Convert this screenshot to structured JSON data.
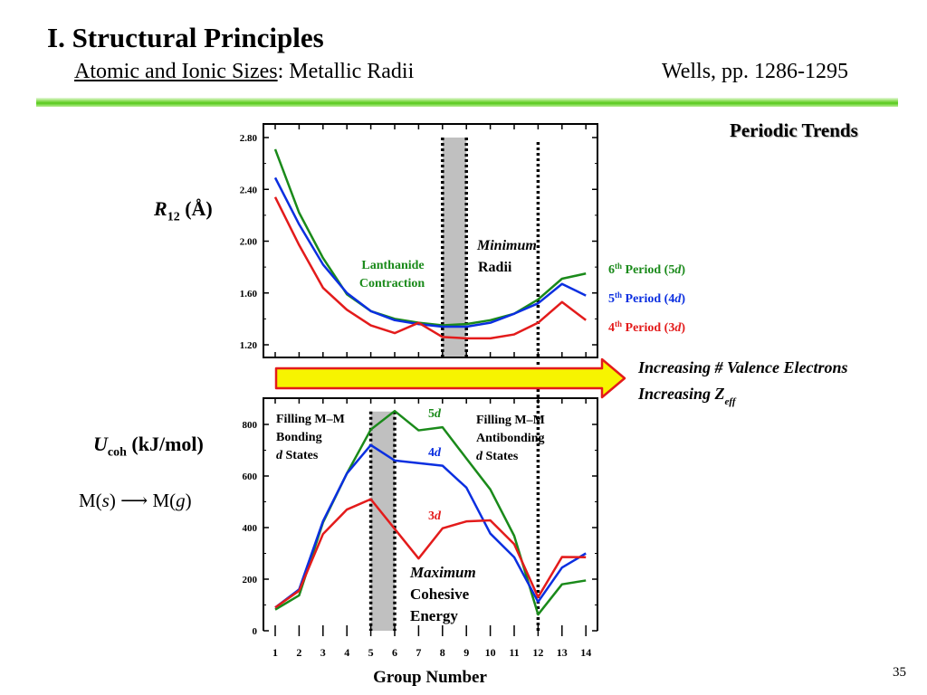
{
  "slide": {
    "title": "I. Structural Principles",
    "subtitle_underlined": "Atomic and Ionic Sizes",
    "subtitle_rest": ": Metallic Radii",
    "reference": "Wells, pp. 1286-1295",
    "trend_heading": "Periodic Trends",
    "page_number": "35",
    "r_symbol": "R",
    "r_subscript": "12",
    "r_unit": " (Å)",
    "u_symbol": "U",
    "u_subscript": "coh",
    "u_unit": " (kJ/mol)",
    "reaction_lhs": "M(",
    "reaction_lhs_state": "s",
    "reaction_arrow": ") ⟶ M(",
    "reaction_rhs_state": "g",
    "reaction_close": ")"
  },
  "colors": {
    "period6": "#1a8a1a",
    "period5": "#0b2fe0",
    "period4": "#e31b1b",
    "shade": "#c0c0c0",
    "arrow_fill": "#f7f400",
    "arrow_stroke": "#e31b1b"
  },
  "arrow_text": {
    "line1": "Increasing # Valence Electrons",
    "line2_main": "Increasing Z",
    "line2_sub": "eff"
  },
  "chart_data": [
    {
      "type": "line",
      "ylabel": "R12 (Å)",
      "ylim": [
        1.2,
        2.8
      ],
      "yticks": [
        "2.80",
        "2.40",
        "2.00",
        "1.60",
        "1.20"
      ],
      "x": [
        1,
        2,
        3,
        4,
        5,
        6,
        7,
        8,
        9,
        10,
        11,
        12,
        13,
        14
      ],
      "series": [
        {
          "name": "6th Period (5d)",
          "label": [
            "6",
            "th",
            " Period (5",
            "d",
            ")"
          ],
          "color_key": "period6",
          "values": [
            2.71,
            2.22,
            1.87,
            1.59,
            1.46,
            1.4,
            1.37,
            1.35,
            1.36,
            1.39,
            1.44,
            1.55,
            1.71,
            1.75
          ]
        },
        {
          "name": "5th Period (4d)",
          "label": [
            "5",
            "th",
            " Period (4",
            "d",
            ")"
          ],
          "color_key": "period5",
          "values": [
            2.49,
            2.13,
            1.82,
            1.6,
            1.46,
            1.39,
            1.36,
            1.34,
            1.34,
            1.37,
            1.44,
            1.52,
            1.67,
            1.58
          ]
        },
        {
          "name": "4th Period (3d)",
          "label": [
            "4",
            "th",
            " Period (3",
            "d",
            ")"
          ],
          "color_key": "period4",
          "values": [
            2.34,
            1.97,
            1.64,
            1.47,
            1.35,
            1.29,
            1.37,
            1.26,
            1.25,
            1.25,
            1.28,
            1.37,
            1.53,
            1.39
          ]
        }
      ],
      "annotations": {
        "lanthanide_line1": "Lanthanide",
        "lanthanide_line2": "Contraction",
        "minimum_line1": "Minimum",
        "minimum_line2": "Radii"
      },
      "shaded_band": {
        "x_from": 8,
        "x_to": 9
      },
      "dotted_lines_x": [
        8,
        9,
        12
      ]
    },
    {
      "type": "line",
      "xlabel": "Group Number",
      "ylabel": "Ucoh (kJ/mol)",
      "ylim": [
        0,
        850
      ],
      "yticks": [
        "800",
        "600",
        "400",
        "200",
        "0"
      ],
      "x": [
        1,
        2,
        3,
        4,
        5,
        6,
        7,
        8,
        9,
        10,
        11,
        12,
        13,
        14
      ],
      "xticks": [
        "1",
        "2",
        "3",
        "4",
        "5",
        "6",
        "7",
        "8",
        "9",
        "10",
        "11",
        "12",
        "13",
        "14"
      ],
      "series": [
        {
          "name": "5d",
          "label": [
            "5",
            "d"
          ],
          "color_key": "period6",
          "values": [
            82,
            137,
            420,
            610,
            780,
            852,
            777,
            789,
            668,
            548,
            368,
            63,
            180,
            195
          ]
        },
        {
          "name": "4d",
          "label": [
            "4",
            "d"
          ],
          "color_key": "period5",
          "values": [
            90,
            160,
            425,
            610,
            720,
            660,
            650,
            640,
            555,
            377,
            285,
            112,
            245,
            300
          ]
        },
        {
          "name": "3d",
          "label": [
            "3",
            "d"
          ],
          "color_key": "period4",
          "values": [
            90,
            155,
            375,
            470,
            510,
            395,
            280,
            397,
            424,
            428,
            336,
            130,
            286,
            285
          ]
        }
      ],
      "annotations": {
        "bonding_line1": "Filling M–M",
        "bonding_line2": "Bonding",
        "bonding_d": "d",
        "bonding_line3": " States",
        "antibonding_line1": "Filling M–M",
        "antibonding_line2": "Antibonding",
        "antibonding_d": "d",
        "antibonding_line3": " States",
        "maximum_line1": "Maximum",
        "maximum_line2": "Cohesive",
        "maximum_line3": "Energy"
      },
      "shaded_band": {
        "x_from": 5,
        "x_to": 6
      },
      "dotted_lines_x": [
        5,
        6,
        12
      ]
    }
  ]
}
